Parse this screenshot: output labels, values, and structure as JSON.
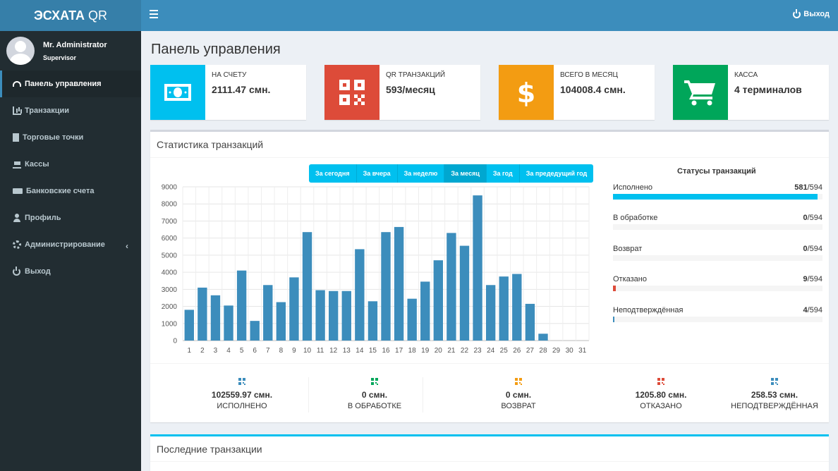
{
  "app": {
    "title_bold": "ЭСХАТА",
    "title_light": "QR"
  },
  "header": {
    "logout_label": "Выход"
  },
  "user": {
    "name": "Mr. Administrator",
    "role": "Supervisor"
  },
  "sidebar": {
    "items": [
      {
        "label": "Панель управления",
        "icon": "dashboard-icon",
        "active": true
      },
      {
        "label": "Транзакции",
        "icon": "bar-chart-icon"
      },
      {
        "label": "Торговые точки",
        "icon": "building-icon"
      },
      {
        "label": "Кассы",
        "icon": "cart-icon"
      },
      {
        "label": "Банковские счета",
        "icon": "money-icon"
      },
      {
        "label": "Профиль",
        "icon": "user-icon"
      },
      {
        "label": "Администрирование",
        "icon": "gear-icon",
        "chevron": "‹"
      },
      {
        "label": "Выход",
        "icon": "power-icon"
      }
    ]
  },
  "page": {
    "title": "Панель управления"
  },
  "info_boxes": [
    {
      "label": "НА СЧЕТУ",
      "value": "2111.47 смн.",
      "color": "#00c0ef",
      "icon": "banknote-icon"
    },
    {
      "label": "QR ТРАНЗАКЦИЙ",
      "value": "593/месяц",
      "color": "#dd4b39",
      "icon": "qrcode-icon"
    },
    {
      "label": "ВСЕГО В МЕСЯЦ",
      "value": "104008.4 смн.",
      "color": "#f39c12",
      "icon": "dollar-icon"
    },
    {
      "label": "КАССА",
      "value": "4 терминалов",
      "color": "#00a65a",
      "icon": "cart-icon"
    }
  ],
  "stats": {
    "title": "Статистика транзакций",
    "filters": [
      {
        "label": "За сегодня"
      },
      {
        "label": "За вчера"
      },
      {
        "label": "За неделю"
      },
      {
        "label": "За месяц",
        "active": true
      },
      {
        "label": "За год"
      },
      {
        "label": "За предедущий год"
      }
    ],
    "statuses_title": "Статусы транзакций",
    "statuses": [
      {
        "label": "Исполнено",
        "count": "581",
        "total": "/594",
        "fraction": 0.978,
        "color": "#00c0ef"
      },
      {
        "label": "В обработке",
        "count": "0",
        "total": "/594",
        "fraction": 0,
        "color": "#f39c12"
      },
      {
        "label": "Возврат",
        "count": "0",
        "total": "/594",
        "fraction": 0,
        "color": "#00a65a"
      },
      {
        "label": "Отказано",
        "count": "9",
        "total": "/594",
        "fraction": 0.015,
        "color": "#dd4b39"
      },
      {
        "label": "Неподтверждённая",
        "count": "4",
        "total": "/594",
        "fraction": 0.007,
        "color": "#3c8dbc"
      }
    ],
    "summaries": [
      {
        "amount": "102559.97 смн.",
        "label": "ИСПОЛНЕНО",
        "color": "#3c8dbc"
      },
      {
        "amount": "0 смн.",
        "label": "В ОБРАБОТКЕ",
        "color": "#00a65a"
      },
      {
        "amount": "0 смн.",
        "label": "ВОЗВРАТ",
        "color": "#f39c12"
      },
      {
        "amount": "1205.80 смн.",
        "label": "ОТКАЗАНО",
        "color": "#dd4b39"
      },
      {
        "amount": "258.53 смн.",
        "label": "НЕПОДТВЕРЖДЁННАЯ",
        "color": "#3c8dbc"
      }
    ]
  },
  "recent": {
    "title": "Последние транзакции"
  },
  "chart_data": {
    "type": "bar",
    "categories": [
      "1",
      "2",
      "3",
      "4",
      "5",
      "6",
      "7",
      "8",
      "9",
      "10",
      "11",
      "12",
      "13",
      "14",
      "15",
      "16",
      "17",
      "18",
      "19",
      "20",
      "21",
      "22",
      "23",
      "24",
      "25",
      "26",
      "27",
      "28",
      "29",
      "30",
      "31"
    ],
    "values": [
      1800,
      3100,
      2650,
      2050,
      4100,
      1150,
      3250,
      2250,
      3700,
      6350,
      2950,
      2900,
      2900,
      5350,
      2300,
      6350,
      6650,
      2450,
      3450,
      4700,
      6300,
      5550,
      8500,
      3250,
      3750,
      3900,
      2150,
      400,
      0,
      0,
      0
    ],
    "ylim": [
      0,
      9000
    ],
    "yticks": [
      0,
      1000,
      2000,
      3000,
      4000,
      5000,
      6000,
      7000,
      8000,
      9000
    ],
    "bar_color": "#3c8dbc",
    "grid": true,
    "title": "",
    "xlabel": "",
    "ylabel": ""
  }
}
